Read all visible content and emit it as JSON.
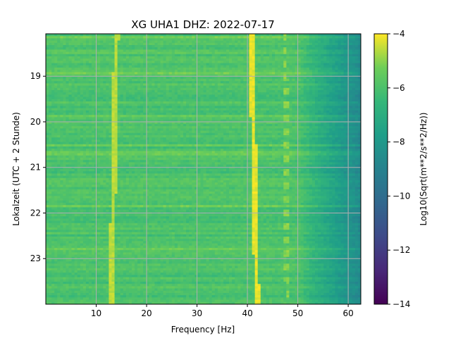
{
  "chart_data": {
    "type": "heatmap",
    "title": "XG UHA1  DHZ: 2022-07-17",
    "xlabel": "Frequency [Hz]",
    "ylabel": "Lokalzeit (UTC + 2 Stunde)",
    "colorbar_label": "Log10(Sqrt(m**2/s**2/Hz))",
    "colormap": "viridis",
    "xlim": [
      0,
      62.5
    ],
    "ylim": [
      24,
      18.07
    ],
    "y_inverted": true,
    "clim": [
      -14,
      -4
    ],
    "x_ticks": [
      10,
      20,
      30,
      40,
      50,
      60
    ],
    "y_ticks": [
      19,
      20,
      21,
      22,
      23
    ],
    "colorbar_ticks": [
      -4,
      -6,
      -8,
      -10,
      -12,
      -14
    ],
    "grid": true,
    "features": [
      {
        "desc": "strong line",
        "freq_start": 14.0,
        "freq_end": 13.0,
        "value": -4.6
      },
      {
        "desc": "drifting strong line",
        "freq_start": 40.8,
        "freq_end": 41.9,
        "value": -4.2
      },
      {
        "desc": "dashed line",
        "freq_start": 47.4,
        "freq_end": 48.0,
        "value": -5.0
      }
    ],
    "background": {
      "low_freq_value": -6.0,
      "high_freq_value": -8.7,
      "rolloff_start_hz": 50
    }
  }
}
